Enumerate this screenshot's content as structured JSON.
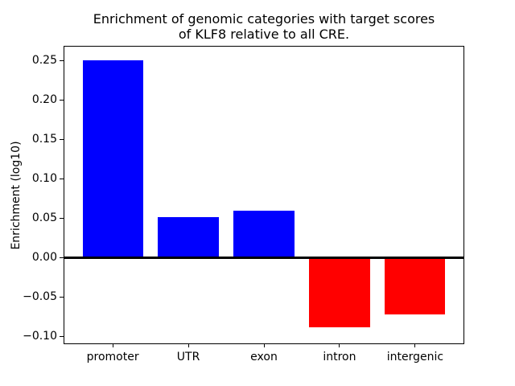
{
  "figure": {
    "background": "#ffffff"
  },
  "chart_data": {
    "type": "bar",
    "title": "Enrichment of genomic categories with target scores\nof KLF8 relative to all CRE.",
    "xlabel": "",
    "ylabel": "Enrichment (log10)",
    "categories": [
      "promoter",
      "UTR",
      "exon",
      "intron",
      "intergenic"
    ],
    "values": [
      0.251,
      0.051,
      0.06,
      -0.089,
      -0.072
    ],
    "bar_colors": [
      "#0000ff",
      "#0000ff",
      "#0000ff",
      "#ff0000",
      "#ff0000"
    ],
    "positive_color": "#0000ff",
    "negative_color": "#ff0000",
    "bar_width": 0.8,
    "xlim": [
      -0.64,
      4.64
    ],
    "ylim": [
      -0.109,
      0.268
    ],
    "yticks": [
      {
        "value": 0.25,
        "label": "0.25"
      },
      {
        "value": 0.2,
        "label": "0.20"
      },
      {
        "value": 0.15,
        "label": "0.15"
      },
      {
        "value": 0.1,
        "label": "0.10"
      },
      {
        "value": 0.05,
        "label": "0.05"
      },
      {
        "value": 0.0,
        "label": "0.00"
      },
      {
        "value": -0.05,
        "label": "−0.05"
      },
      {
        "value": -0.1,
        "label": "−0.10"
      }
    ],
    "grid": false,
    "legend": null,
    "zero_line": {
      "value": 0,
      "color": "#000000",
      "thickness": 3
    },
    "axis_color": "#000000",
    "text_color": "#000000"
  }
}
